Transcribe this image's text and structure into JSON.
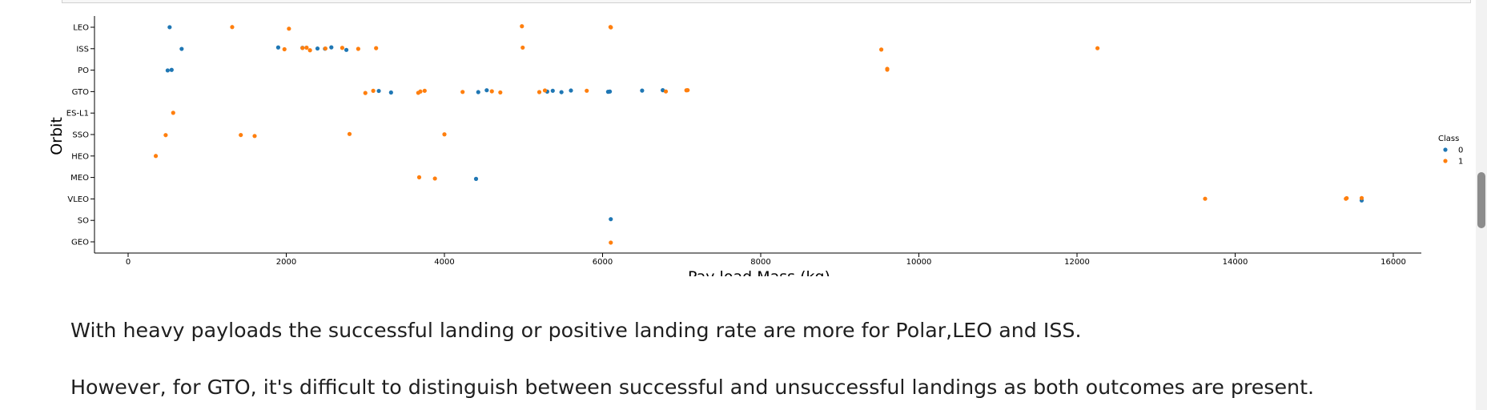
{
  "chart_data": {
    "type": "scatter",
    "xlabel": "Pay load Mass (kg)",
    "ylabel": "Orbit",
    "xlim": [
      -400,
      16350
    ],
    "xticks": [
      0,
      2000,
      4000,
      6000,
      8000,
      10000,
      12000,
      14000,
      16000
    ],
    "categories": [
      "LEO",
      "ISS",
      "PO",
      "GTO",
      "ES-L1",
      "SSO",
      "HEO",
      "MEO",
      "VLEO",
      "SO",
      "GEO"
    ],
    "legend": {
      "title": "Class",
      "position": "right",
      "entries": [
        "0",
        "1"
      ]
    },
    "grid": false,
    "colors": {
      "0": "#1f77b4",
      "1": "#ff7f0e"
    },
    "series": [
      {
        "name": "0",
        "points": [
          {
            "x": 525,
            "y": "LEO"
          },
          {
            "x": 677,
            "y": "ISS"
          },
          {
            "x": 1898,
            "y": "ISS"
          },
          {
            "x": 2205,
            "y": "ISS"
          },
          {
            "x": 2395,
            "y": "ISS"
          },
          {
            "x": 2490,
            "y": "ISS"
          },
          {
            "x": 2570,
            "y": "ISS"
          },
          {
            "x": 2760,
            "y": "ISS"
          },
          {
            "x": 500,
            "y": "PO"
          },
          {
            "x": 550,
            "y": "PO"
          },
          {
            "x": 3170,
            "y": "GTO"
          },
          {
            "x": 3325,
            "y": "GTO"
          },
          {
            "x": 4428,
            "y": "GTO"
          },
          {
            "x": 4535,
            "y": "GTO"
          },
          {
            "x": 5300,
            "y": "GTO"
          },
          {
            "x": 5370,
            "y": "GTO"
          },
          {
            "x": 5480,
            "y": "GTO"
          },
          {
            "x": 5600,
            "y": "GTO"
          },
          {
            "x": 6070,
            "y": "GTO"
          },
          {
            "x": 6092,
            "y": "GTO"
          },
          {
            "x": 6500,
            "y": "GTO"
          },
          {
            "x": 6761,
            "y": "GTO"
          },
          {
            "x": 4400,
            "y": "MEO"
          },
          {
            "x": 15600,
            "y": "VLEO"
          },
          {
            "x": 6104,
            "y": "SO"
          }
        ]
      },
      {
        "name": "1",
        "points": [
          {
            "x": 1316,
            "y": "LEO"
          },
          {
            "x": 2034,
            "y": "LEO"
          },
          {
            "x": 4980,
            "y": "LEO"
          },
          {
            "x": 6100,
            "y": "LEO"
          },
          {
            "x": 6105,
            "y": "LEO"
          },
          {
            "x": 1977,
            "y": "ISS"
          },
          {
            "x": 2205,
            "y": "ISS"
          },
          {
            "x": 2257,
            "y": "ISS"
          },
          {
            "x": 2300,
            "y": "ISS"
          },
          {
            "x": 2495,
            "y": "ISS"
          },
          {
            "x": 2708,
            "y": "ISS"
          },
          {
            "x": 2910,
            "y": "ISS"
          },
          {
            "x": 3136,
            "y": "ISS"
          },
          {
            "x": 4990,
            "y": "ISS"
          },
          {
            "x": 9525,
            "y": "ISS"
          },
          {
            "x": 12259,
            "y": "ISS"
          },
          {
            "x": 9600,
            "y": "PO"
          },
          {
            "x": 9600,
            "y": "PO"
          },
          {
            "x": 3000,
            "y": "GTO"
          },
          {
            "x": 3100,
            "y": "GTO"
          },
          {
            "x": 3669,
            "y": "GTO"
          },
          {
            "x": 3696,
            "y": "GTO"
          },
          {
            "x": 3750,
            "y": "GTO"
          },
          {
            "x": 4230,
            "y": "GTO"
          },
          {
            "x": 4600,
            "y": "GTO"
          },
          {
            "x": 4707,
            "y": "GTO"
          },
          {
            "x": 5200,
            "y": "GTO"
          },
          {
            "x": 5271,
            "y": "GTO"
          },
          {
            "x": 5800,
            "y": "GTO"
          },
          {
            "x": 6800,
            "y": "GTO"
          },
          {
            "x": 7060,
            "y": "GTO"
          },
          {
            "x": 7076,
            "y": "GTO"
          },
          {
            "x": 570,
            "y": "ES-L1"
          },
          {
            "x": 475,
            "y": "SSO"
          },
          {
            "x": 1425,
            "y": "SSO"
          },
          {
            "x": 1600,
            "y": "SSO"
          },
          {
            "x": 2800,
            "y": "SSO"
          },
          {
            "x": 4000,
            "y": "SSO"
          },
          {
            "x": 350,
            "y": "HEO"
          },
          {
            "x": 3681,
            "y": "MEO"
          },
          {
            "x": 3880,
            "y": "MEO"
          },
          {
            "x": 13620,
            "y": "VLEO"
          },
          {
            "x": 15400,
            "y": "VLEO"
          },
          {
            "x": 15410,
            "y": "VLEO"
          },
          {
            "x": 15600,
            "y": "VLEO"
          },
          {
            "x": 6104,
            "y": "GEO"
          }
        ]
      }
    ]
  },
  "notes": {
    "paragraph_1": "With heavy payloads the successful landing or positive landing rate are more for Polar,LEO and ISS.",
    "paragraph_2": "However, for GTO, it's difficult to distinguish between successful and unsuccessful landings as both outcomes are present."
  }
}
